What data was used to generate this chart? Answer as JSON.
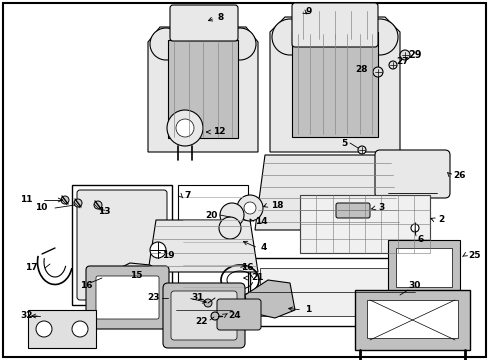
{
  "background_color": "#ffffff",
  "border_color": "#000000",
  "line_color": "#000000",
  "label_fontsize": 6.5,
  "dpi": 100,
  "figsize": [
    4.89,
    3.6
  ],
  "gray_fill": "#e8e8e8",
  "gray_dark": "#c0c0c0",
  "gray_seat": "#d0d0d0",
  "seat_stripe": "#999999"
}
